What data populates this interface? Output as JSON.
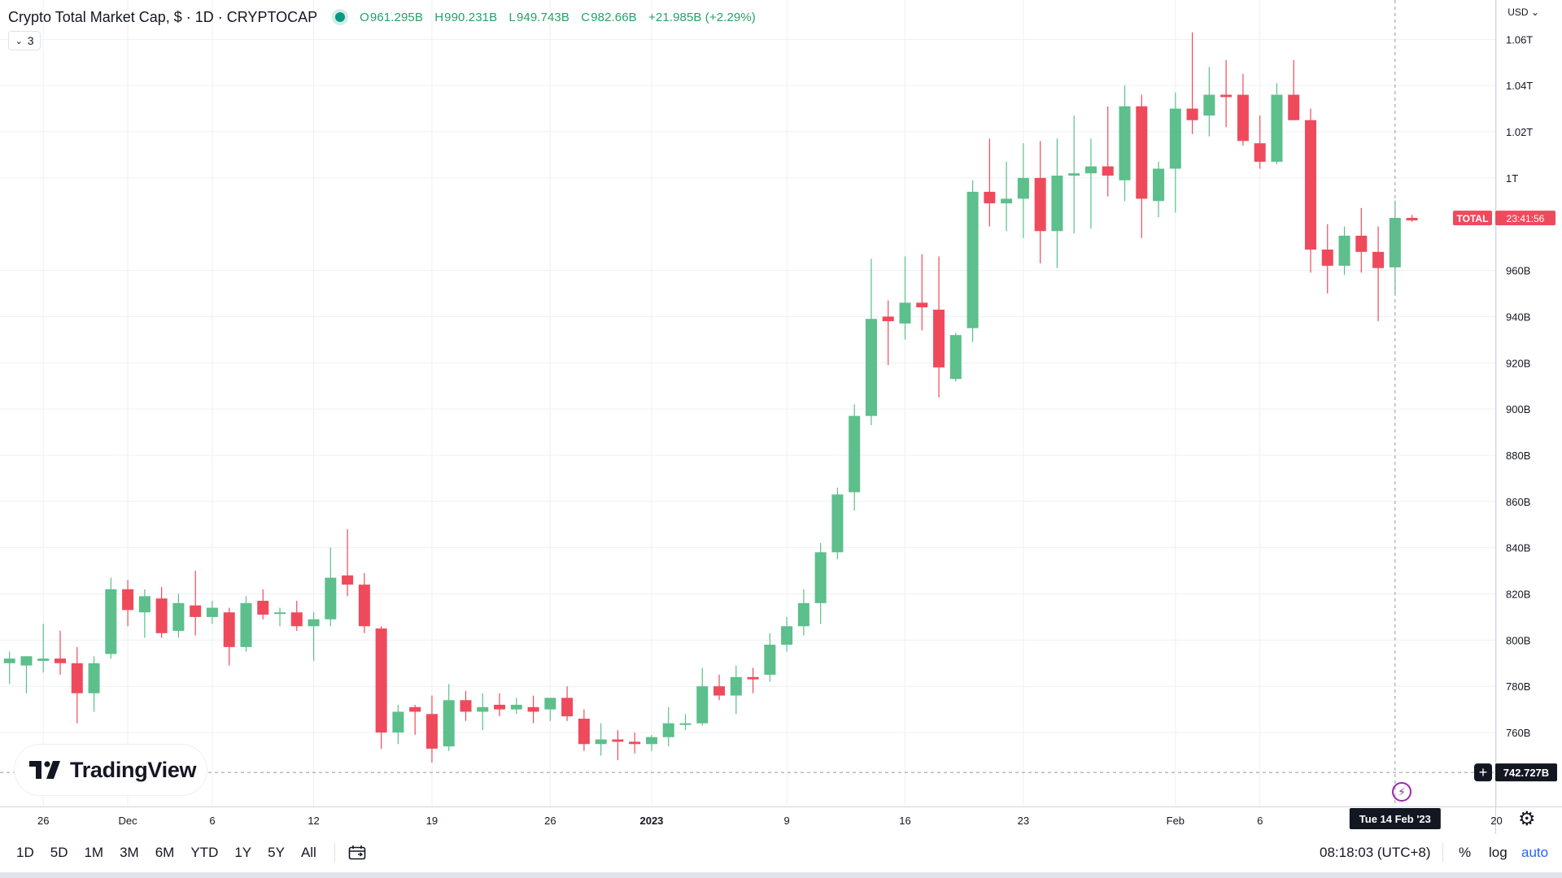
{
  "header": {
    "title": "Crypto Total Market Cap, $ · 1D · CRYPTOCAP",
    "ohlc": {
      "o_label": "O",
      "o": "961.295B",
      "h_label": "H",
      "h": "990.231B",
      "l_label": "L",
      "l": "949.743B",
      "c_label": "C",
      "c": "982.66B",
      "change": "+21.985B (+2.29%)"
    },
    "indicators_count": "3",
    "currency": "USD"
  },
  "colors": {
    "up": "#5cbf8c",
    "down": "#ef4a5c",
    "grid": "#eef0f4",
    "axis_text": "#131722",
    "label_total": "#ef4a5c",
    "crosshair_label": "#131722"
  },
  "price_label": {
    "symbol": "TOTAL",
    "countdown": "23:41:56"
  },
  "crosshair": {
    "price": "742.727B",
    "date": "Tue 14 Feb '23"
  },
  "logo": {
    "text": "TradingView"
  },
  "toolbar": {
    "ranges": [
      "1D",
      "5D",
      "1M",
      "3M",
      "6M",
      "YTD",
      "1Y",
      "5Y",
      "All"
    ],
    "clock": "08:18:03 (UTC+8)",
    "percent": "%",
    "log": "log",
    "auto": "auto"
  },
  "chart_data": {
    "type": "candlestick",
    "title": "Crypto Total Market Cap, $ · 1D · CRYPTOCAP",
    "unit": "billions USD",
    "ylim": [
      728,
      1077
    ],
    "y_ticks": [
      {
        "value": 760,
        "label": "760B"
      },
      {
        "value": 780,
        "label": "780B"
      },
      {
        "value": 800,
        "label": "800B"
      },
      {
        "value": 820,
        "label": "820B"
      },
      {
        "value": 840,
        "label": "840B"
      },
      {
        "value": 860,
        "label": "860B"
      },
      {
        "value": 880,
        "label": "880B"
      },
      {
        "value": 900,
        "label": "900B"
      },
      {
        "value": 920,
        "label": "920B"
      },
      {
        "value": 940,
        "label": "940B"
      },
      {
        "value": 960,
        "label": "960B"
      },
      {
        "value": 1000,
        "label": "1T"
      },
      {
        "value": 1020,
        "label": "1.02T"
      },
      {
        "value": 1040,
        "label": "1.04T"
      },
      {
        "value": 1060,
        "label": "1.06T"
      }
    ],
    "x_ticks": [
      {
        "index": 2,
        "label": "26"
      },
      {
        "index": 7,
        "label": "Dec"
      },
      {
        "index": 12,
        "label": "6"
      },
      {
        "index": 18,
        "label": "12"
      },
      {
        "index": 25,
        "label": "19"
      },
      {
        "index": 32,
        "label": "26"
      },
      {
        "index": 38,
        "label": "2023"
      },
      {
        "index": 46,
        "label": "9"
      },
      {
        "index": 53,
        "label": "16"
      },
      {
        "index": 60,
        "label": "23"
      },
      {
        "index": 69,
        "label": "Feb"
      },
      {
        "index": 74,
        "label": "6"
      },
      {
        "index": 88,
        "label": "20"
      }
    ],
    "last_price": 982.66,
    "crosshair_price": 742.727,
    "crosshair_index": 82,
    "candles": [
      {
        "o": 790.0,
        "h": 795.0,
        "l": 781.0,
        "c": 792.0
      },
      {
        "o": 789.0,
        "h": 791.0,
        "l": 777.0,
        "c": 793.0
      },
      {
        "o": 791.0,
        "h": 807.0,
        "l": 786.0,
        "c": 792.0
      },
      {
        "o": 792.0,
        "h": 804.0,
        "l": 785.0,
        "c": 790.0
      },
      {
        "o": 790.0,
        "h": 797.0,
        "l": 764.0,
        "c": 777.0
      },
      {
        "o": 777.0,
        "h": 793.0,
        "l": 769.0,
        "c": 790.0
      },
      {
        "o": 794.0,
        "h": 827.0,
        "l": 792.0,
        "c": 822.0
      },
      {
        "o": 822.0,
        "h": 826.0,
        "l": 806.0,
        "c": 813.0
      },
      {
        "o": 812.0,
        "h": 822.0,
        "l": 801.0,
        "c": 819.0
      },
      {
        "o": 818.0,
        "h": 823.0,
        "l": 801.0,
        "c": 803.0
      },
      {
        "o": 804.0,
        "h": 820.0,
        "l": 801.0,
        "c": 816.0
      },
      {
        "o": 815.0,
        "h": 830.0,
        "l": 802.0,
        "c": 810.0
      },
      {
        "o": 810.0,
        "h": 817.0,
        "l": 807.0,
        "c": 814.0
      },
      {
        "o": 812.0,
        "h": 814.0,
        "l": 789.0,
        "c": 797.0
      },
      {
        "o": 797.0,
        "h": 819.0,
        "l": 795.0,
        "c": 816.0
      },
      {
        "o": 817.0,
        "h": 822.0,
        "l": 809.0,
        "c": 811.0
      },
      {
        "o": 812.0,
        "h": 814.0,
        "l": 806.0,
        "c": 812.0
      },
      {
        "o": 812.0,
        "h": 817.0,
        "l": 804.0,
        "c": 806.0
      },
      {
        "o": 806.0,
        "h": 812.0,
        "l": 791.0,
        "c": 809.0
      },
      {
        "o": 809.0,
        "h": 840.0,
        "l": 806.0,
        "c": 827.0
      },
      {
        "o": 828.0,
        "h": 848.0,
        "l": 819.0,
        "c": 824.0
      },
      {
        "o": 824.0,
        "h": 829.0,
        "l": 803.0,
        "c": 806.0
      },
      {
        "o": 805.0,
        "h": 806.0,
        "l": 753.0,
        "c": 760.0
      },
      {
        "o": 760.0,
        "h": 772.0,
        "l": 755.0,
        "c": 769.0
      },
      {
        "o": 771.0,
        "h": 772.0,
        "l": 759.0,
        "c": 769.0
      },
      {
        "o": 768.0,
        "h": 776.0,
        "l": 747.0,
        "c": 753.0
      },
      {
        "o": 754.0,
        "h": 781.0,
        "l": 752.0,
        "c": 774.0
      },
      {
        "o": 774.0,
        "h": 778.0,
        "l": 765.0,
        "c": 769.0
      },
      {
        "o": 769.0,
        "h": 777.0,
        "l": 761.0,
        "c": 771.0
      },
      {
        "o": 772.0,
        "h": 777.0,
        "l": 767.0,
        "c": 770.0
      },
      {
        "o": 770.0,
        "h": 775.0,
        "l": 768.0,
        "c": 772.0
      },
      {
        "o": 771.0,
        "h": 776.0,
        "l": 764.0,
        "c": 769.0
      },
      {
        "o": 770.0,
        "h": 775.0,
        "l": 765.0,
        "c": 775.0
      },
      {
        "o": 775.0,
        "h": 780.0,
        "l": 765.0,
        "c": 767.0
      },
      {
        "o": 766.0,
        "h": 770.0,
        "l": 752.0,
        "c": 755.0
      },
      {
        "o": 755.0,
        "h": 764.0,
        "l": 750.0,
        "c": 757.0
      },
      {
        "o": 757.0,
        "h": 761.0,
        "l": 748.0,
        "c": 756.0
      },
      {
        "o": 756.0,
        "h": 760.0,
        "l": 751.0,
        "c": 755.0
      },
      {
        "o": 755.0,
        "h": 759.0,
        "l": 752.0,
        "c": 758.0
      },
      {
        "o": 758.0,
        "h": 771.0,
        "l": 754.0,
        "c": 764.0
      },
      {
        "o": 764.0,
        "h": 768.0,
        "l": 761.0,
        "c": 764.0
      },
      {
        "o": 764.0,
        "h": 788.0,
        "l": 763.0,
        "c": 780.0
      },
      {
        "o": 780.0,
        "h": 785.0,
        "l": 774.0,
        "c": 776.0
      },
      {
        "o": 776.0,
        "h": 789.0,
        "l": 768.0,
        "c": 784.0
      },
      {
        "o": 784.0,
        "h": 788.0,
        "l": 777.0,
        "c": 783.0
      },
      {
        "o": 785.0,
        "h": 803.0,
        "l": 782.0,
        "c": 798.0
      },
      {
        "o": 798.0,
        "h": 810.0,
        "l": 795.0,
        "c": 806.0
      },
      {
        "o": 806.0,
        "h": 822.0,
        "l": 802.0,
        "c": 816.0
      },
      {
        "o": 816.0,
        "h": 842.0,
        "l": 807.0,
        "c": 838.0
      },
      {
        "o": 838.0,
        "h": 866.0,
        "l": 835.0,
        "c": 863.0
      },
      {
        "o": 864.0,
        "h": 902.0,
        "l": 856.0,
        "c": 897.0
      },
      {
        "o": 897.0,
        "h": 965.0,
        "l": 893.0,
        "c": 939.0
      },
      {
        "o": 940.0,
        "h": 947.0,
        "l": 919.0,
        "c": 938.0
      },
      {
        "o": 937.0,
        "h": 966.0,
        "l": 930.0,
        "c": 946.0
      },
      {
        "o": 946.0,
        "h": 967.0,
        "l": 934.0,
        "c": 944.0
      },
      {
        "o": 943.0,
        "h": 966.0,
        "l": 905.0,
        "c": 918.0
      },
      {
        "o": 913.0,
        "h": 933.0,
        "l": 912.0,
        "c": 932.0
      },
      {
        "o": 935.0,
        "h": 999.0,
        "l": 929.0,
        "c": 994.0
      },
      {
        "o": 994.0,
        "h": 1017.0,
        "l": 979.0,
        "c": 989.0
      },
      {
        "o": 989.0,
        "h": 1007.0,
        "l": 977.0,
        "c": 991.0
      },
      {
        "o": 991.0,
        "h": 1015.0,
        "l": 974.0,
        "c": 1000.0
      },
      {
        "o": 1000.0,
        "h": 1016.0,
        "l": 963.0,
        "c": 977.0
      },
      {
        "o": 977.0,
        "h": 1017.0,
        "l": 961.0,
        "c": 1001.0
      },
      {
        "o": 1001.0,
        "h": 1027.0,
        "l": 976.0,
        "c": 1002.0
      },
      {
        "o": 1002.0,
        "h": 1017.0,
        "l": 978.0,
        "c": 1005.0
      },
      {
        "o": 1005.0,
        "h": 1031.0,
        "l": 992.0,
        "c": 1001.0
      },
      {
        "o": 999.0,
        "h": 1040.0,
        "l": 990.0,
        "c": 1031.0
      },
      {
        "o": 1031.0,
        "h": 1036.0,
        "l": 974.0,
        "c": 991.0
      },
      {
        "o": 990.0,
        "h": 1007.0,
        "l": 983.0,
        "c": 1004.0
      },
      {
        "o": 1004.0,
        "h": 1037.0,
        "l": 985.0,
        "c": 1030.0
      },
      {
        "o": 1030.0,
        "h": 1063.0,
        "l": 1019.0,
        "c": 1025.0
      },
      {
        "o": 1027.0,
        "h": 1048.0,
        "l": 1018.0,
        "c": 1036.0
      },
      {
        "o": 1036.0,
        "h": 1051.0,
        "l": 1022.0,
        "c": 1035.0
      },
      {
        "o": 1036.0,
        "h": 1045.0,
        "l": 1014.0,
        "c": 1016.0
      },
      {
        "o": 1015.0,
        "h": 1027.0,
        "l": 1004.0,
        "c": 1007.0
      },
      {
        "o": 1007.0,
        "h": 1041.0,
        "l": 1006.0,
        "c": 1036.0
      },
      {
        "o": 1036.0,
        "h": 1051.0,
        "l": 1025.0,
        "c": 1025.0
      },
      {
        "o": 1025.0,
        "h": 1030.0,
        "l": 959.0,
        "c": 969.0
      },
      {
        "o": 969.0,
        "h": 980.0,
        "l": 950.0,
        "c": 962.0
      },
      {
        "o": 962.0,
        "h": 979.0,
        "l": 958.0,
        "c": 975.0
      },
      {
        "o": 975.0,
        "h": 987.0,
        "l": 959.0,
        "c": 968.0
      },
      {
        "o": 968.0,
        "h": 979.0,
        "l": 938.0,
        "c": 961.0
      },
      {
        "o": 961.3,
        "h": 990.2,
        "l": 949.7,
        "c": 982.7
      },
      {
        "o": 982.7,
        "h": 984.0,
        "l": 981.0,
        "c": 981.6
      }
    ]
  }
}
